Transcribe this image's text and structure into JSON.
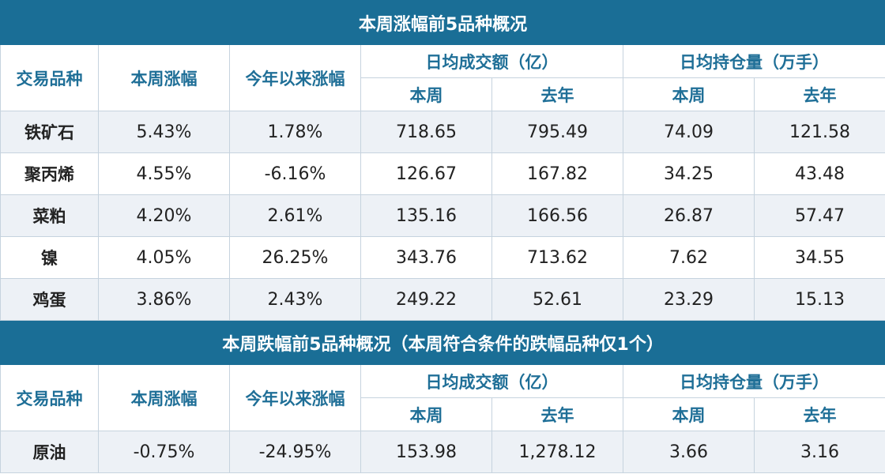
{
  "top": {
    "title": "本周涨幅前5品种概况",
    "headers": {
      "col1": "交易品种",
      "col2": "本周涨幅",
      "col3": "今年以来涨幅",
      "group1": "日均成交额（亿）",
      "group2": "日均持仓量（万手）",
      "this_week": "本周",
      "last_year": "去年"
    },
    "rows": [
      {
        "name": "铁矿石",
        "weekly": "5.43%",
        "ytd": "1.78%",
        "vol_week": "718.65",
        "vol_year": "795.49",
        "oi_week": "74.09",
        "oi_year": "121.58"
      },
      {
        "name": "聚丙烯",
        "weekly": "4.55%",
        "ytd": "-6.16%",
        "vol_week": "126.67",
        "vol_year": "167.82",
        "oi_week": "34.25",
        "oi_year": "43.48"
      },
      {
        "name": "菜粕",
        "weekly": "4.20%",
        "ytd": "2.61%",
        "vol_week": "135.16",
        "vol_year": "166.56",
        "oi_week": "26.87",
        "oi_year": "57.47"
      },
      {
        "name": "镍",
        "weekly": "4.05%",
        "ytd": "26.25%",
        "vol_week": "343.76",
        "vol_year": "713.62",
        "oi_week": "7.62",
        "oi_year": "34.55"
      },
      {
        "name": "鸡蛋",
        "weekly": "3.86%",
        "ytd": "2.43%",
        "vol_week": "249.22",
        "vol_year": "52.61",
        "oi_week": "23.29",
        "oi_year": "15.13"
      }
    ]
  },
  "bottom": {
    "title": "本周跌幅前5品种概况（本周符合条件的跌幅品种仅1个）",
    "headers": {
      "col1": "交易品种",
      "col2": "本周涨幅",
      "col3": "今年以来涨幅",
      "group1": "日均成交额（亿）",
      "group2": "日均持仓量（万手）",
      "this_week": "本周",
      "last_year": "去年"
    },
    "rows": [
      {
        "name": "原油",
        "weekly": "-0.75%",
        "ytd": "-24.95%",
        "vol_week": "153.98",
        "vol_year": "1,278.12",
        "oi_week": "3.66",
        "oi_year": "3.16"
      }
    ]
  },
  "colors": {
    "title_bg": "#1a6e96",
    "header_text": "#1f6f97",
    "row_shade": "#edf1f6",
    "border": "#c6d3de"
  }
}
